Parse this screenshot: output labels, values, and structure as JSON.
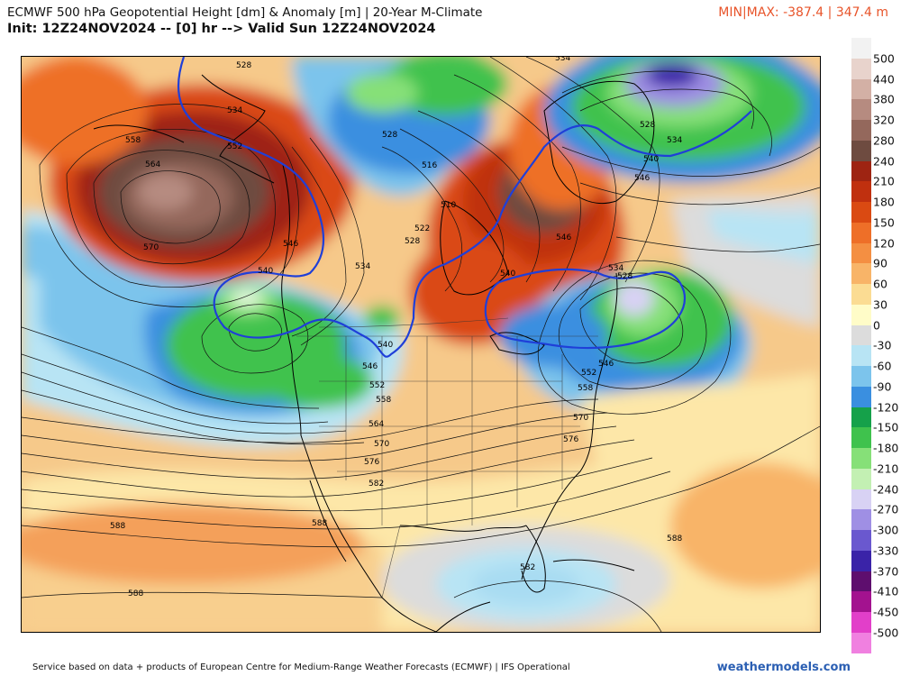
{
  "header": {
    "line1": "ECMWF 500 hPa Geopotential Height [dm] & Anomaly [m] | 20-Year M-Climate",
    "line2": "Init: 12Z24NOV2024 -- [0] hr --> Valid Sun 12Z24NOV2024",
    "minmax": "MIN|MAX: -387.4 | 347.4 m"
  },
  "colorbar": {
    "levels": [
      {
        "label": "500",
        "color": "#f2f2f2"
      },
      {
        "label": "440",
        "color": "#e8d3cc"
      },
      {
        "label": "380",
        "color": "#d3b0a5"
      },
      {
        "label": "320",
        "color": "#b68b80"
      },
      {
        "label": "280",
        "color": "#94685c"
      },
      {
        "label": "240",
        "color": "#6e4b40"
      },
      {
        "label": "210",
        "color": "#9e2412"
      },
      {
        "label": "180",
        "color": "#c0300f"
      },
      {
        "label": "150",
        "color": "#da4a12"
      },
      {
        "label": "120",
        "color": "#ee6f28"
      },
      {
        "label": "90",
        "color": "#f48f42"
      },
      {
        "label": "60",
        "color": "#f8b468"
      },
      {
        "label": "30",
        "color": "#fbdc93"
      },
      {
        "label": "0",
        "color": "#fffcc8"
      },
      {
        "label": "-30",
        "color": "#dcdcdc"
      },
      {
        "label": "-60",
        "color": "#b8e4f4"
      },
      {
        "label": "-90",
        "color": "#7cc4ec"
      },
      {
        "label": "-120",
        "color": "#3a8fe0"
      },
      {
        "label": "-150",
        "color": "#15a14a"
      },
      {
        "label": "-180",
        "color": "#3fc24d"
      },
      {
        "label": "-210",
        "color": "#86e078"
      },
      {
        "label": "-240",
        "color": "#c3f0b3"
      },
      {
        "label": "-270",
        "color": "#d8d2f4"
      },
      {
        "label": "-300",
        "color": "#9f8fe4"
      },
      {
        "label": "-330",
        "color": "#6a58cf"
      },
      {
        "label": "-370",
        "color": "#3a23a8"
      },
      {
        "label": "-410",
        "color": "#5e0e6e"
      },
      {
        "label": "-450",
        "color": "#a3128f"
      },
      {
        "label": "-500",
        "color": "#e23fc9"
      }
    ],
    "extra_swatch": "#f080e0"
  },
  "map": {
    "contour_labels": [
      {
        "text": "528"
      },
      {
        "text": "534"
      },
      {
        "text": "558"
      },
      {
        "text": "552"
      },
      {
        "text": "564"
      },
      {
        "text": "570"
      },
      {
        "text": "546"
      },
      {
        "text": "540"
      },
      {
        "text": "534"
      },
      {
        "text": "540"
      },
      {
        "text": "552"
      },
      {
        "text": "546"
      },
      {
        "text": "558"
      },
      {
        "text": "564"
      },
      {
        "text": "570"
      },
      {
        "text": "576"
      },
      {
        "text": "582"
      },
      {
        "text": "588"
      },
      {
        "text": "588"
      },
      {
        "text": "588"
      },
      {
        "text": "582"
      },
      {
        "text": "528"
      },
      {
        "text": "516"
      },
      {
        "text": "510"
      },
      {
        "text": "522"
      },
      {
        "text": "528"
      },
      {
        "text": "534"
      },
      {
        "text": "528"
      },
      {
        "text": "534"
      },
      {
        "text": "540"
      },
      {
        "text": "546"
      },
      {
        "text": "546"
      },
      {
        "text": "540"
      },
      {
        "text": "534"
      },
      {
        "text": "528"
      },
      {
        "text": "552"
      },
      {
        "text": "558"
      },
      {
        "text": "570"
      },
      {
        "text": "576"
      },
      {
        "text": "588"
      },
      {
        "text": "546"
      }
    ]
  },
  "footer": {
    "source": "Service based on data + products of European Centre for Medium-Range Weather Forecasts (ECMWF) | IFS Operational",
    "credit": "weathermodels.com"
  }
}
